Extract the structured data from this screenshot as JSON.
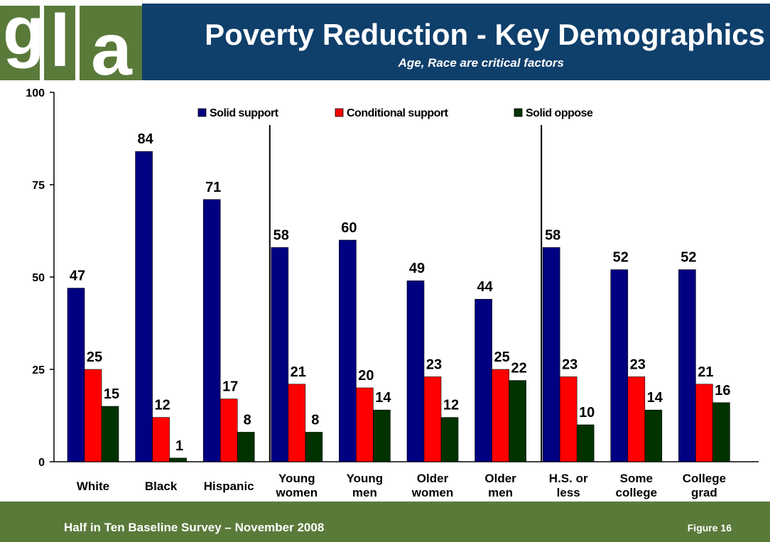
{
  "logo": {
    "letter_g": "g",
    "letter_l": "l",
    "letter_a": "a"
  },
  "header": {
    "title": "Poverty Reduction - Key Demographics",
    "subtitle": "Age, Race are critical factors"
  },
  "footer": {
    "source": "Half in Ten Baseline Survey – November 2008",
    "figure": "Figure 16"
  },
  "colors": {
    "header_bg": "#0f3f6b",
    "brand_green": "#5a7a3a",
    "solid_support": "#000080",
    "conditional_support": "#ff0000",
    "solid_oppose": "#003300"
  },
  "chart_data": {
    "type": "bar",
    "title": "Poverty Reduction - Key Demographics",
    "ylim": [
      0,
      100
    ],
    "yticks": [
      0,
      25,
      50,
      75,
      100
    ],
    "grid": false,
    "legend_position": "top",
    "categories": [
      [
        "White"
      ],
      [
        "Black"
      ],
      [
        "Hispanic"
      ],
      [
        "Young",
        "women"
      ],
      [
        "Young",
        "men"
      ],
      [
        "Older",
        "women"
      ],
      [
        "Older",
        "men"
      ],
      [
        "H.S. or",
        "less"
      ],
      [
        "Some",
        "college"
      ],
      [
        "College",
        "grad"
      ]
    ],
    "group_dividers_after": [
      2,
      6
    ],
    "series": [
      {
        "name": "Solid support",
        "color": "#000080",
        "values": [
          47,
          84,
          71,
          58,
          60,
          49,
          44,
          58,
          52,
          52
        ]
      },
      {
        "name": "Conditional support",
        "color": "#ff0000",
        "values": [
          25,
          12,
          17,
          21,
          20,
          23,
          25,
          23,
          23,
          21
        ]
      },
      {
        "name": "Solid oppose",
        "color": "#003300",
        "values": [
          15,
          1,
          8,
          8,
          14,
          12,
          22,
          10,
          14,
          16
        ]
      }
    ]
  }
}
